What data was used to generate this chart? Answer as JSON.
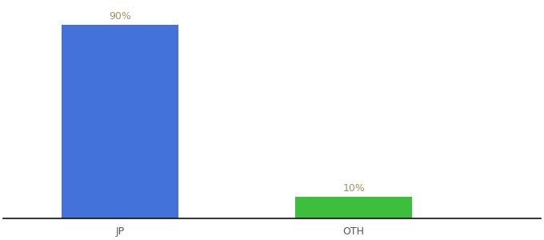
{
  "categories": [
    "JP",
    "OTH"
  ],
  "values": [
    90,
    10
  ],
  "bar_colors": [
    "#4472db",
    "#3dbf3d"
  ],
  "value_labels": [
    "90%",
    "10%"
  ],
  "background_color": "#ffffff",
  "label_color": "#a09060",
  "label_fontsize": 9,
  "tick_fontsize": 9,
  "tick_color": "#555555",
  "ylim": [
    0,
    100
  ],
  "bar_width": 0.5,
  "figsize": [
    6.8,
    3.0
  ],
  "dpi": 100,
  "x_positions": [
    1,
    2
  ]
}
